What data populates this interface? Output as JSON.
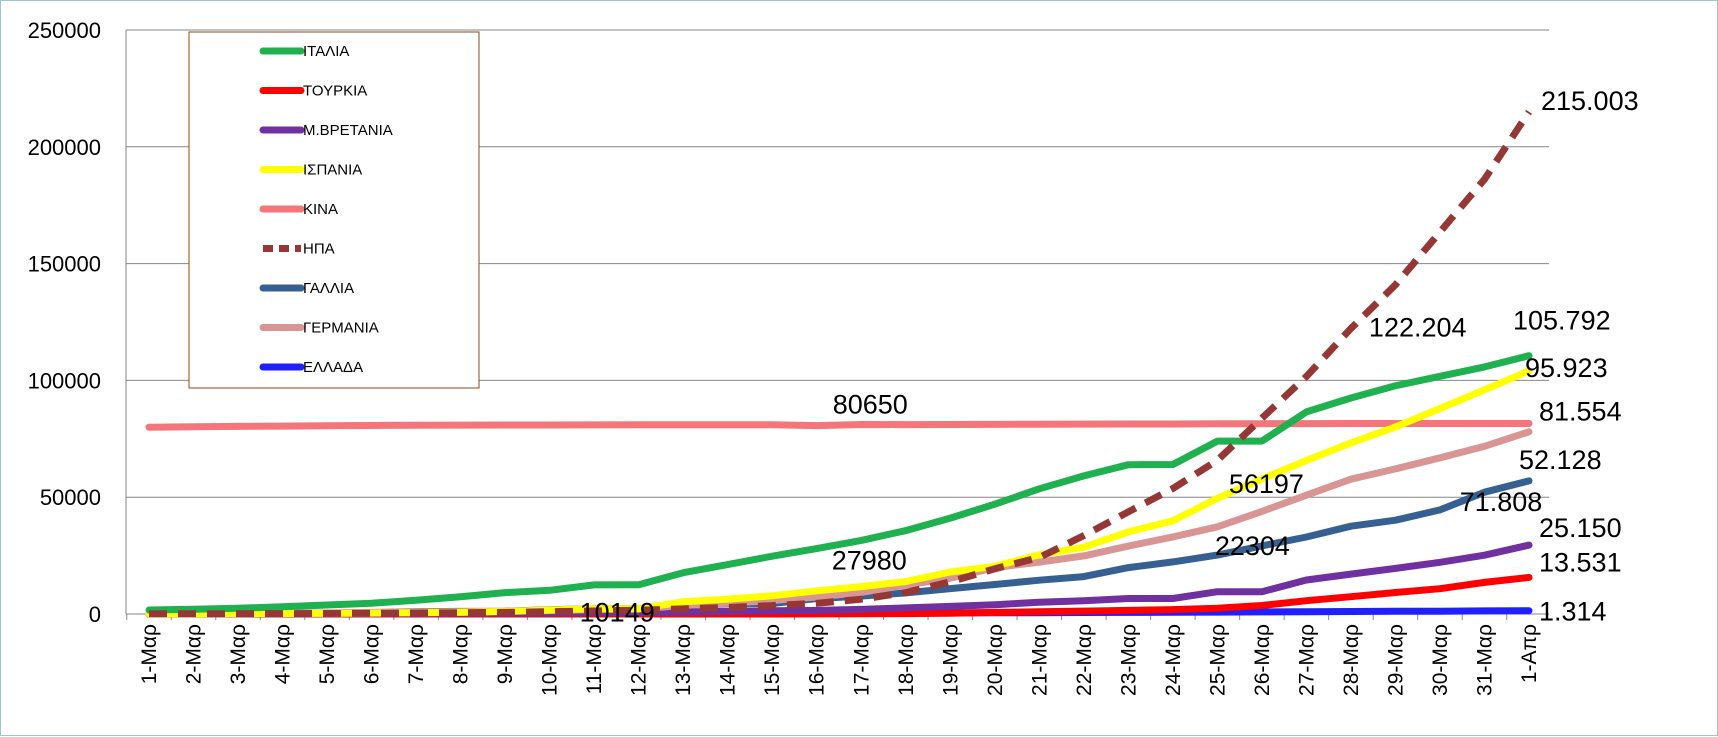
{
  "chart_data": {
    "type": "line",
    "title": "",
    "xlabel": "",
    "ylabel": "",
    "ylim": [
      0,
      250000
    ],
    "yticks": [
      "0",
      "50000",
      "100000",
      "150000",
      "200000",
      "250000"
    ],
    "categories": [
      "1-Μαρ",
      "2-Μαρ",
      "3-Μαρ",
      "4-Μαρ",
      "5-Μαρ",
      "6-Μαρ",
      "7-Μαρ",
      "8-Μαρ",
      "9-Μαρ",
      "10-Μαρ",
      "11-Μαρ",
      "12-Μαρ",
      "13-Μαρ",
      "14-Μαρ",
      "15-Μαρ",
      "16-Μαρ",
      "17-Μαρ",
      "18-Μαρ",
      "19-Μαρ",
      "20-Μαρ",
      "21-Μαρ",
      "22-Μαρ",
      "23-Μαρ",
      "24-Μαρ",
      "25-Μαρ",
      "26-Μαρ",
      "27-Μαρ",
      "28-Μαρ",
      "29-Μαρ",
      "30-Μαρ",
      "31-Μαρ",
      "1-Απρ"
    ],
    "grid": true,
    "legend_position": "top-left",
    "series": [
      {
        "name": "ΙΤΑΛΙΑ",
        "color": "#1fb04f",
        "dashed": false,
        "values": [
          1694,
          2036,
          2502,
          3089,
          3858,
          4636,
          5883,
          7375,
          9172,
          10149,
          12462,
          12500,
          17660,
          21157,
          24747,
          27980,
          31506,
          35713,
          41035,
          47021,
          53578,
          59138,
          63927,
          64000,
          74000,
          74000,
          86498,
          92472,
          97689,
          101739,
          105792,
          110574
        ]
      },
      {
        "name": "ΤΟΥΡΚΙΑ",
        "color": "#ff0000",
        "dashed": false,
        "values": [
          0,
          0,
          0,
          0,
          0,
          0,
          0,
          0,
          0,
          0,
          1,
          1,
          5,
          6,
          18,
          47,
          98,
          191,
          359,
          670,
          947,
          1236,
          1529,
          1872,
          2433,
          3629,
          5698,
          7402,
          9217,
          10827,
          13531,
          15679
        ]
      },
      {
        "name": "Μ.ΒΡΕΤΑΝΙΑ",
        "color": "#7030a0",
        "dashed": false,
        "values": [
          36,
          40,
          51,
          85,
          115,
          163,
          206,
          273,
          321,
          373,
          456,
          590,
          798,
          1140,
          1391,
          1543,
          1950,
          2626,
          3269,
          3983,
          5018,
          5683,
          6650,
          6650,
          9529,
          9529,
          14543,
          17089,
          19522,
          22141,
          25150,
          29474
        ]
      },
      {
        "name": "ΙΣΠΑΝΙΑ",
        "color": "#ffff00",
        "dashed": false,
        "values": [
          84,
          120,
          165,
          222,
          259,
          400,
          500,
          673,
          1073,
          1695,
          2277,
          2277,
          5232,
          6391,
          7798,
          9942,
          11748,
          13910,
          17963,
          20410,
          25374,
          28603,
          35136,
          39885,
          49515,
          57786,
          65719,
          73235,
          80110,
          87956,
          95923,
          104118
        ]
      },
      {
        "name": "ΚΙΝΑ",
        "color": "#f4767a",
        "dashed": false,
        "values": [
          79968,
          80174,
          80304,
          80422,
          80565,
          80710,
          80813,
          80859,
          80904,
          80924,
          80955,
          80992,
          81003,
          81021,
          81048,
          80650,
          81102,
          81058,
          81116,
          81151,
          81235,
          81300,
          81345,
          81348,
          81400,
          81450,
          81500,
          81554,
          81554,
          81554,
          81554,
          81554
        ]
      },
      {
        "name": "ΗΠΑ",
        "color": "#953735",
        "dashed": true,
        "values": [
          75,
          100,
          124,
          158,
          221,
          319,
          435,
          541,
          704,
          994,
          1301,
          1630,
          2183,
          2770,
          3613,
          4596,
          6344,
          9197,
          13779,
          19367,
          24192,
          33546,
          43734,
          53740,
          65778,
          83836,
          101657,
          122204,
          140904,
          163539,
          186101,
          215003
        ]
      },
      {
        "name": "ΓΑΛΛΙΑ",
        "color": "#376092",
        "dashed": false,
        "values": [
          130,
          191,
          204,
          285,
          377,
          653,
          949,
          1126,
          1209,
          1784,
          2284,
          2284,
          3661,
          4469,
          4499,
          6633,
          7652,
          9043,
          10871,
          12612,
          14459,
          16018,
          19856,
          22304,
          25233,
          29155,
          32964,
          37575,
          40174,
          44550,
          52128,
          56989
        ]
      },
      {
        "name": "ΓΕΡΜΑΝΙΑ",
        "color": "#d99594",
        "dashed": false,
        "values": [
          130,
          159,
          196,
          262,
          482,
          670,
          799,
          1040,
          1176,
          1457,
          1908,
          2078,
          3675,
          4585,
          5795,
          7272,
          9257,
          12327,
          15320,
          19848,
          22213,
          24873,
          29056,
          32986,
          37323,
          43938,
          50871,
          57695,
          62095,
          66885,
          71808,
          77981
        ]
      },
      {
        "name": "ΕΛΛΑΔΑ",
        "color": "#1f1fff",
        "dashed": false,
        "values": [
          7,
          7,
          7,
          9,
          31,
          45,
          46,
          73,
          73,
          89,
          99,
          117,
          190,
          228,
          331,
          352,
          387,
          418,
          464,
          495,
          530,
          624,
          695,
          743,
          821,
          892,
          966,
          1061,
          1156,
          1212,
          1314,
          1415
        ]
      }
    ],
    "annotations": [
      {
        "text": "215.003"
      },
      {
        "text": "122.204"
      },
      {
        "text": "105.792"
      },
      {
        "text": "95.923"
      },
      {
        "text": "81.554"
      },
      {
        "text": "71.808"
      },
      {
        "text": "52.128"
      },
      {
        "text": "25.150"
      },
      {
        "text": "13.531"
      },
      {
        "text": "1.314"
      },
      {
        "text": "80650"
      },
      {
        "text": "27980"
      },
      {
        "text": "10149"
      },
      {
        "text": "56197"
      },
      {
        "text": "22304"
      }
    ]
  }
}
